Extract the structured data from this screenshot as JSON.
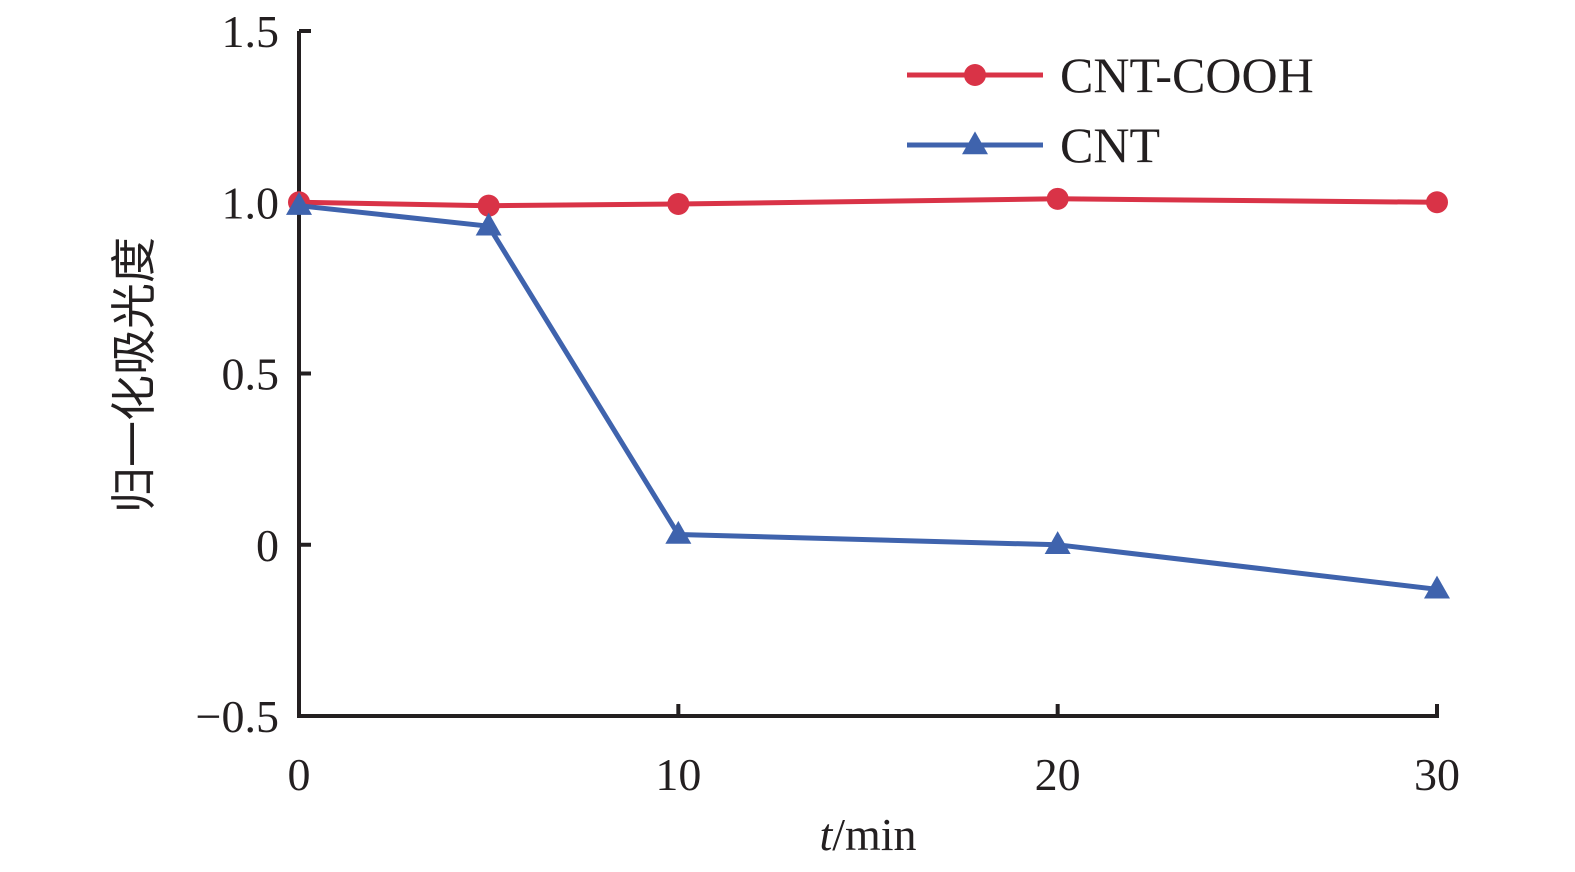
{
  "chart_data": {
    "type": "line",
    "title": "",
    "xlabel_italic": "t",
    "xlabel_rest": "/min",
    "ylabel": "归一化吸光度",
    "xlim": [
      0,
      30
    ],
    "ylim": [
      -0.5,
      1.5
    ],
    "xticks": [
      0,
      10,
      20,
      30
    ],
    "xtick_labels": [
      "0",
      "10",
      "20",
      "30"
    ],
    "yticks": [
      -0.5,
      0,
      0.5,
      1.0,
      1.5
    ],
    "ytick_labels": [
      "−0.5",
      "0",
      "0.5",
      "1.0",
      "1.5"
    ],
    "grid": false,
    "legend_position": "top-right",
    "series": [
      {
        "name": "CNT-COOH",
        "color": "#d93347",
        "marker": "circle",
        "x": [
          0,
          5,
          10,
          20,
          30
        ],
        "y": [
          1.0,
          0.99,
          0.995,
          1.01,
          1.0
        ]
      },
      {
        "name": "CNT",
        "color": "#3f63ad",
        "marker": "triangle",
        "x": [
          0,
          5,
          10,
          20,
          30
        ],
        "y": [
          0.99,
          0.93,
          0.03,
          0.0,
          -0.13
        ]
      }
    ]
  }
}
